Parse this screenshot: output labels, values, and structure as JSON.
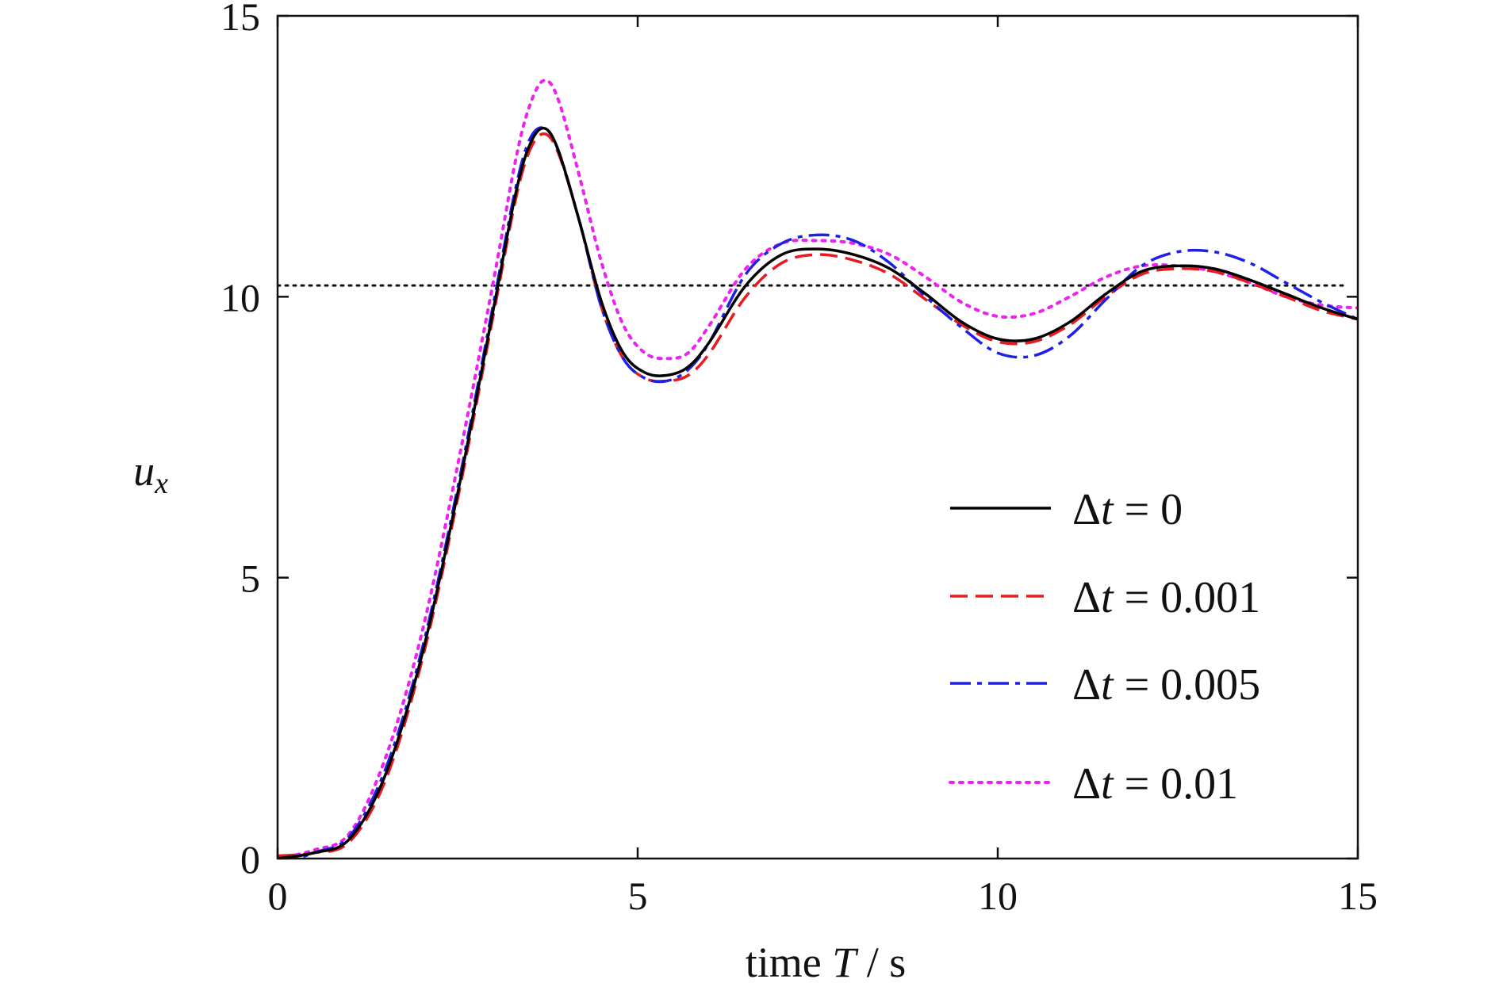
{
  "chart_data": {
    "type": "line",
    "title": "",
    "xlabel": {
      "prefix": "time ",
      "var": "T",
      "suffix": " / s"
    },
    "ylabel": {
      "var": "u",
      "sub": "x"
    },
    "xlim": [
      0,
      15
    ],
    "ylim": [
      0,
      15
    ],
    "xticks": [
      "0",
      "5",
      "10",
      "15"
    ],
    "yticks": [
      "0",
      "5",
      "10",
      "15"
    ],
    "grid": false,
    "legend_position": "lower-right",
    "reference_line": {
      "y": 10.2,
      "x_range": [
        0,
        14.8
      ],
      "color": "#111111",
      "style": "dotted"
    },
    "x": [
      0,
      0.5,
      1,
      1.5,
      2,
      2.5,
      3,
      3.3,
      3.5,
      3.7,
      3.9,
      4.2,
      4.5,
      4.8,
      5.1,
      5.4,
      5.7,
      6,
      6.5,
      7,
      7.5,
      8,
      8.5,
      9,
      9.5,
      10,
      10.5,
      11,
      11.5,
      12,
      12.5,
      13,
      13.5,
      14,
      14.5,
      15
    ],
    "series": [
      {
        "name": "Δt = 0",
        "legend": {
          "delta": "Δ",
          "var": "t",
          "rest": " = 0"
        },
        "color": "#000000",
        "dash": "",
        "values": [
          0,
          0.1,
          0.35,
          1.5,
          3.6,
          6.5,
          9.8,
          11.8,
          12.7,
          13.0,
          12.6,
          11.3,
          9.9,
          9.0,
          8.65,
          8.6,
          8.75,
          9.2,
          10.2,
          10.75,
          10.85,
          10.75,
          10.5,
          10.05,
          9.55,
          9.25,
          9.25,
          9.55,
          10.05,
          10.45,
          10.55,
          10.5,
          10.3,
          10.05,
          9.8,
          9.6
        ]
      },
      {
        "name": "Δt = 0.001",
        "legend": {
          "delta": "Δ",
          "var": "t",
          "rest": " = 0.001"
        },
        "color": "#e8191f",
        "dash": "22,10",
        "values": [
          0.05,
          0.1,
          0.3,
          1.4,
          3.5,
          6.4,
          9.7,
          11.7,
          12.6,
          12.9,
          12.55,
          11.3,
          9.8,
          8.9,
          8.55,
          8.5,
          8.6,
          9.0,
          10.0,
          10.6,
          10.75,
          10.65,
          10.4,
          9.95,
          9.5,
          9.2,
          9.2,
          9.5,
          10.0,
          10.4,
          10.5,
          10.45,
          10.25,
          10.0,
          9.75,
          9.6
        ]
      },
      {
        "name": "Δt = 0.005",
        "legend": {
          "delta": "Δ",
          "var": "t",
          "rest": " = 0.005"
        },
        "color": "#1f1fe6",
        "dash": "26,8,6,8",
        "values": [
          -0.1,
          0.1,
          0.4,
          1.6,
          3.7,
          6.6,
          9.9,
          11.9,
          12.8,
          13.0,
          12.6,
          11.3,
          9.8,
          8.9,
          8.55,
          8.5,
          8.7,
          9.2,
          10.4,
          10.95,
          11.1,
          11.0,
          10.6,
          10.0,
          9.45,
          9.0,
          8.95,
          9.3,
          9.95,
          10.55,
          10.8,
          10.8,
          10.6,
          10.25,
          9.9,
          9.6
        ]
      },
      {
        "name": "Δt = 0.01",
        "legend": {
          "delta": "Δ",
          "var": "t",
          "rest": " = 0.01"
        },
        "color": "#ee22ee",
        "dash": "4,8",
        "values": [
          0,
          0.15,
          0.45,
          1.8,
          4.0,
          7.0,
          10.3,
          12.4,
          13.4,
          13.85,
          13.5,
          12.1,
          10.6,
          9.5,
          9.0,
          8.9,
          9.0,
          9.5,
          10.5,
          10.95,
          11.0,
          10.95,
          10.75,
          10.35,
          9.9,
          9.65,
          9.7,
          10.0,
          10.35,
          10.55,
          10.55,
          10.45,
          10.25,
          10.0,
          9.85,
          9.8
        ]
      }
    ]
  }
}
